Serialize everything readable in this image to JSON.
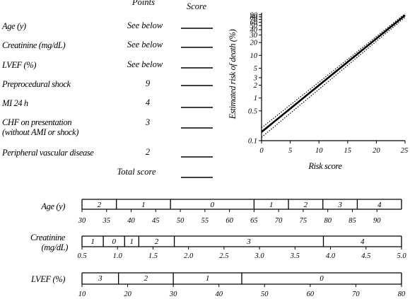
{
  "score_table": {
    "headers": {
      "points": "Points",
      "score": "Score"
    },
    "rows": [
      {
        "label": "Age (y)",
        "points": "See below"
      },
      {
        "label": "Creatinine (mg/dL)",
        "points": "See below"
      },
      {
        "label": "LVEF (%)",
        "points": "See below"
      },
      {
        "label": "Preprocedural shock",
        "points": "9"
      },
      {
        "label": "MI  24 h",
        "points": "4"
      },
      {
        "label": "CHF on presentation",
        "label2": "(without AMI or shock)",
        "points": "3"
      },
      {
        "label": "Peripheral vascular disease",
        "points": "2"
      }
    ],
    "total_label": "Total score"
  },
  "chart_data": [
    {
      "type": "line",
      "xlabel": "Risk score",
      "ylabel": "Estimated risk of death (%)",
      "xlim": [
        0,
        25
      ],
      "ylim": [
        0.1,
        100
      ],
      "y_scale": "log",
      "x_ticks": [
        0,
        5,
        10,
        15,
        20,
        25
      ],
      "y_ticks": [
        0.1,
        0.5,
        1,
        2,
        3,
        5,
        10,
        20,
        30,
        40,
        50,
        60,
        70,
        80,
        90
      ],
      "y_tick_labels": [
        "0.1",
        "0.5",
        "1",
        "2",
        "3",
        "5",
        "10",
        "20",
        "30",
        "40",
        "50",
        "60",
        "70",
        "80",
        "90"
      ],
      "series": [
        {
          "style": "solid",
          "x": [
            0,
            25
          ],
          "y": [
            0.16,
            87
          ]
        },
        {
          "style": "dotted",
          "x": [
            0,
            25
          ],
          "y": [
            0.2,
            95
          ]
        },
        {
          "style": "dotted",
          "x": [
            0,
            25
          ],
          "y": [
            0.12,
            78
          ]
        }
      ]
    },
    {
      "type": "table",
      "rows": [
        {
          "label": "Age (y)",
          "range": [
            30,
            95
          ],
          "ticks": [
            30,
            35,
            40,
            45,
            50,
            55,
            60,
            65,
            70,
            75,
            80,
            85,
            90
          ],
          "tick_labels": [
            "30",
            "35",
            "40",
            "45",
            "50",
            "55",
            "60",
            "65",
            "70",
            "75",
            "80",
            "85",
            "90"
          ],
          "boundaries": [
            37,
            48,
            65,
            72,
            79,
            86
          ],
          "segments": [
            {
              "from": 30,
              "to": 37,
              "points": "2"
            },
            {
              "from": 37,
              "to": 48,
              "points": "1"
            },
            {
              "from": 48,
              "to": 65,
              "points": "0"
            },
            {
              "from": 65,
              "to": 72,
              "points": "1"
            },
            {
              "from": 72,
              "to": 79,
              "points": "2"
            },
            {
              "from": 79,
              "to": 86,
              "points": "3"
            },
            {
              "from": 86,
              "to": 95,
              "points": "4"
            }
          ]
        },
        {
          "label": "Creatinine",
          "label2": "(mg/dL)",
          "range": [
            0.5,
            5.0
          ],
          "ticks": [
            0.5,
            1.0,
            1.5,
            2.0,
            2.5,
            3.0,
            3.5,
            4.0,
            4.5,
            5.0
          ],
          "tick_labels": [
            "0.5",
            "1.0",
            "1.5",
            "2.0",
            "2.5",
            "3.0",
            "3.5",
            "4.0",
            "4.5",
            "5.0"
          ],
          "boundaries": [
            0.8,
            1.1,
            1.3,
            1.8,
            3.9
          ],
          "segments": [
            {
              "from": 0.5,
              "to": 0.8,
              "points": "1"
            },
            {
              "from": 0.8,
              "to": 1.1,
              "points": "0"
            },
            {
              "from": 1.1,
              "to": 1.3,
              "points": "1"
            },
            {
              "from": 1.3,
              "to": 1.8,
              "points": "2"
            },
            {
              "from": 1.8,
              "to": 3.9,
              "points": "3"
            },
            {
              "from": 3.9,
              "to": 5.0,
              "points": "4"
            }
          ]
        },
        {
          "label": "LVEF (%)",
          "range": [
            10,
            80
          ],
          "ticks": [
            10,
            20,
            30,
            40,
            50,
            60,
            70,
            80
          ],
          "tick_labels": [
            "10",
            "20",
            "30",
            "40",
            "50",
            "60",
            "70",
            "80"
          ],
          "boundaries": [
            18,
            30,
            45
          ],
          "segments": [
            {
              "from": 10,
              "to": 18,
              "points": "3"
            },
            {
              "from": 18,
              "to": 30,
              "points": "2"
            },
            {
              "from": 30,
              "to": 45,
              "points": "1"
            },
            {
              "from": 45,
              "to": 80,
              "points": "0"
            }
          ]
        }
      ]
    }
  ]
}
